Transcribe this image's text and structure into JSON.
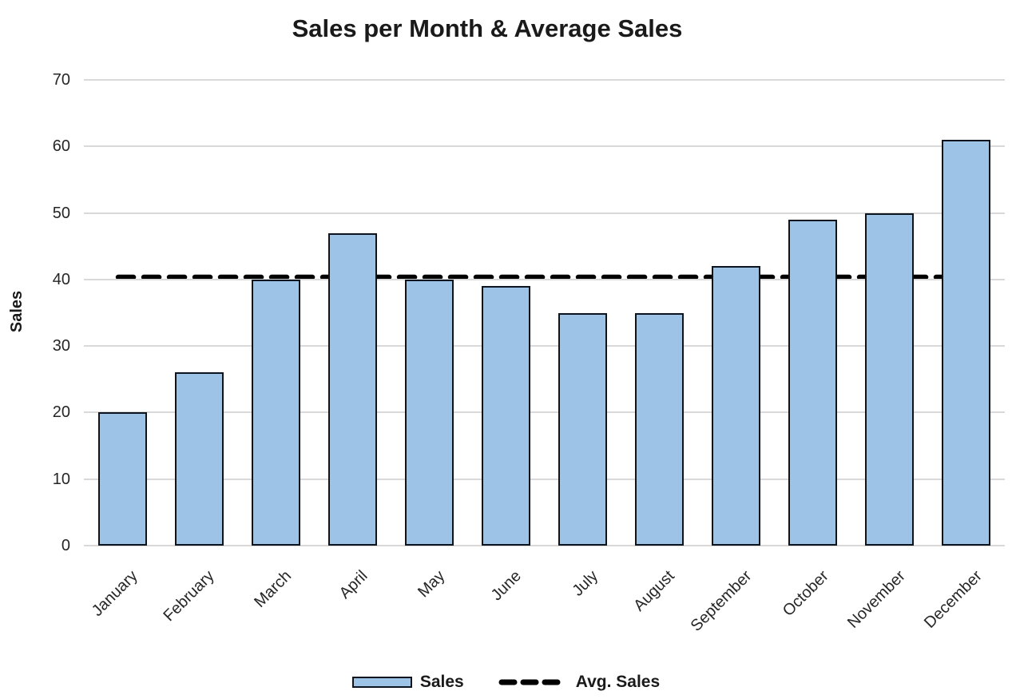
{
  "title": "Sales per Month & Average Sales",
  "y_axis": {
    "title": "Sales",
    "tick_labels": [
      "0",
      "10",
      "20",
      "30",
      "40",
      "50",
      "60",
      "70"
    ],
    "min": 0,
    "max": 70,
    "tick_step": 10
  },
  "x_axis": {
    "labels": [
      "January",
      "February",
      "March",
      "April",
      "May",
      "June",
      "July",
      "August",
      "September",
      "October",
      "November",
      "December"
    ]
  },
  "legend": {
    "position": "bottom",
    "sales_label": "Sales",
    "avg_label": "Avg. Sales"
  },
  "colors": {
    "background": "#FFFFFF",
    "bar_fill": "#9DC3E6",
    "bar_border": "#0C1420",
    "gridline": "#D9D9D9",
    "avg_line": "#000000",
    "axis_text": "#262626",
    "title_text": "#1A1A1A"
  },
  "chart_data": {
    "type": "bar",
    "title": "Sales per Month & Average Sales",
    "categories": [
      "January",
      "February",
      "March",
      "April",
      "May",
      "June",
      "July",
      "August",
      "September",
      "October",
      "November",
      "December"
    ],
    "series": [
      {
        "name": "Sales",
        "type": "bar",
        "values": [
          20,
          26,
          40,
          47,
          40,
          39,
          35,
          35,
          42,
          49,
          50,
          61
        ]
      },
      {
        "name": "Avg. Sales",
        "type": "line",
        "line_style": "dashed",
        "constant_value": 40.33
      }
    ],
    "xlabel": "",
    "ylabel": "Sales",
    "ylim": [
      0,
      70
    ],
    "grid": true,
    "legend_position": "bottom"
  }
}
